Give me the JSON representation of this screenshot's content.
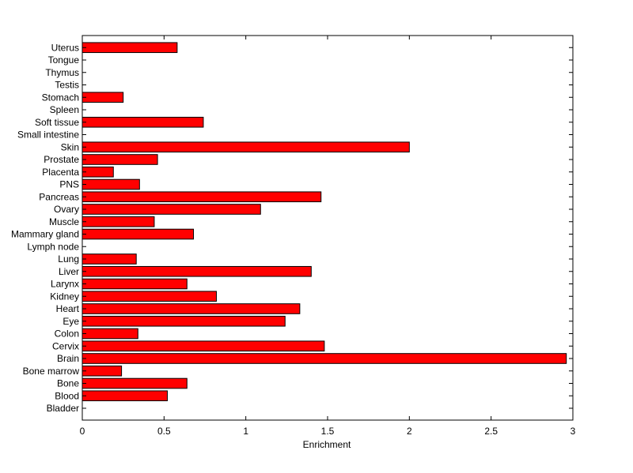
{
  "chart_data": {
    "type": "bar",
    "orientation": "horizontal",
    "title": "",
    "xlabel": "Enrichment",
    "ylabel": "",
    "xlim": [
      0,
      3
    ],
    "xticks": [
      "0",
      "0.5",
      "1",
      "1.5",
      "2",
      "2.5",
      "3"
    ],
    "grid": false,
    "bar_color": "#ff0000",
    "bar_edge_color": "#000000",
    "categories": [
      "Bladder",
      "Blood",
      "Bone",
      "Bone marrow",
      "Brain",
      "Cervix",
      "Colon",
      "Eye",
      "Heart",
      "Kidney",
      "Larynx",
      "Liver",
      "Lung",
      "Lymph node",
      "Mammary gland",
      "Muscle",
      "Ovary",
      "Pancreas",
      "PNS",
      "Placenta",
      "Prostate",
      "Skin",
      "Small intestine",
      "Soft tissue",
      "Spleen",
      "Stomach",
      "Testis",
      "Thymus",
      "Tongue",
      "Uterus"
    ],
    "values": [
      0,
      0.52,
      0.64,
      0.24,
      2.96,
      1.48,
      0.34,
      1.24,
      1.33,
      0.82,
      0.64,
      1.4,
      0.33,
      0,
      0.68,
      0.44,
      1.09,
      1.46,
      0.35,
      0.19,
      0.46,
      2.0,
      0,
      0.74,
      0,
      0.25,
      0,
      0,
      0,
      0.58
    ]
  }
}
